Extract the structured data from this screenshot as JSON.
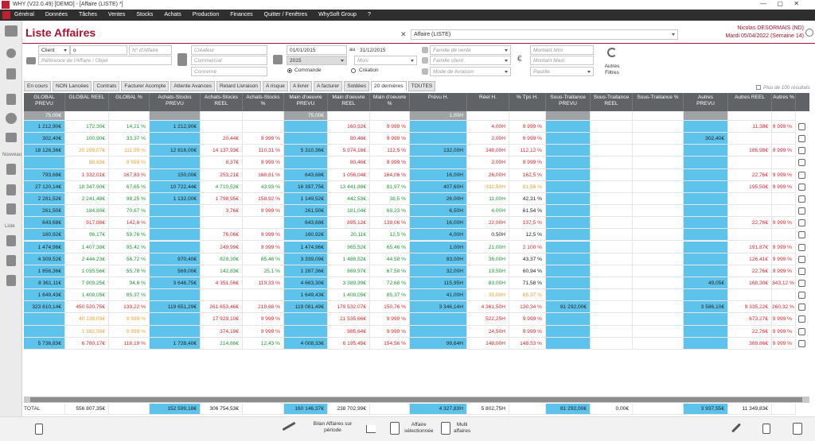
{
  "window": {
    "title": "WHY (V22.0.49)  [DEMO] - [Affaire (LISTE) *]"
  },
  "menu": [
    "Général",
    "Données",
    "Tâches",
    "Ventes",
    "Stocks",
    "Achats",
    "Production",
    "Finances",
    "Quitter / Fenêtres",
    "WhySoft Group",
    "?"
  ],
  "sidebar": {
    "new": "Nouveau",
    "list": "Liste"
  },
  "header": {
    "title": "Liste Affaires",
    "view": "Affaire (LISTE)",
    "user": "Nicolas DESORMAIS (ND)",
    "date": "Mardi 05/04/2022 (Semaine 14)"
  },
  "filters": {
    "client": "Client",
    "client_value": "o",
    "number": "N° d'Affaire",
    "reference": "Référence de l'Affaire / Objet",
    "creator": "Créateur",
    "sales": "Commercial",
    "concerned": "Concerné",
    "date_from": "01/01/2015",
    "date_to_label": "au",
    "date_to": "31/12/2015",
    "year": "2015",
    "month": "Mois",
    "radio_order": "Commande",
    "radio_creation": "Création",
    "sales_family": "Famille de vente",
    "client_family": "Famille client",
    "delivery": "Mode de livraison",
    "min": "Montant Mini",
    "max": "Montant Maxi",
    "badge": "Pastille",
    "currency": "€",
    "more": "Autres\nFiltres"
  },
  "tabs": {
    "items": [
      "En cours",
      "NON Lancées",
      "Contrats",
      "Facturer Acompte",
      "Attente Avances",
      "Retard Livraison",
      "A risque",
      "A livrer",
      "A facturer",
      "Soldées",
      "20 dernières",
      "TOUTES"
    ],
    "selected": 10,
    "more_results": "Plus de 100 résultats"
  },
  "table": {
    "highlight_color": "#5ec3ea",
    "filter_color": "#9ea3a8",
    "palette": {
      "k": "#222222",
      "g": "#1e9a3c",
      "r": "#e2262f",
      "o": "#f0a236"
    },
    "columns": [
      {
        "label": "GLOBAL\nPREVU",
        "highlight": true
      },
      {
        "label": "GLOBAL REEL"
      },
      {
        "label": "GLOBAL %"
      },
      {
        "label": "Achats-Stocks\nPREVU",
        "highlight": true
      },
      {
        "label": "Achats-Stocks\nREEL"
      },
      {
        "label": "Achats-Stocks\n%"
      },
      {
        "label": "Main d'oeuvre\nPREVU",
        "highlight": true
      },
      {
        "label": "Main d'oeuvre\nREEL"
      },
      {
        "label": "Main d'oeuvre\n%"
      },
      {
        "label": "Prévu H.",
        "highlight": true
      },
      {
        "label": "Réel H."
      },
      {
        "label": "% Tps H."
      },
      {
        "label": "Sous-Traitance\nPREVU",
        "highlight": true
      },
      {
        "label": "Sous-Traitance\nREEL"
      },
      {
        "label": "Sous-Traitance %"
      },
      {
        "label": "Autres\nPREVU",
        "highlight": true
      },
      {
        "label": "Autres REEL"
      },
      {
        "label": "Autres %"
      }
    ],
    "filter_row": [
      "75,00€",
      null,
      null,
      null,
      null,
      null,
      "75,00€",
      null,
      null,
      "1,00H",
      null,
      null,
      null,
      null,
      null,
      null,
      null,
      null
    ],
    "rows": [
      {
        "tones": "kggkkkkrrkrrkkkkrr",
        "cells": [
          "1 212,90€",
          "172,30€",
          "14,21 %",
          "1 212,90€",
          null,
          null,
          null,
          "160,92€",
          "9 999 %",
          null,
          "4,00H",
          "9 999 %",
          null,
          null,
          null,
          null,
          "11,38€",
          "9 999 %"
        ]
      },
      {
        "tones": "kggkrrkrrkrrkkkkkk",
        "cells": [
          "302,40€",
          "100,90€",
          "33,37 %",
          null,
          "20,44€",
          "9 999 %",
          null,
          "80,46€",
          "9 999 %",
          null,
          "2,00H",
          "9 999 %",
          null,
          null,
          null,
          "302,40€",
          null,
          null
        ]
      },
      {
        "tones": "kookrrkrrkrrkkkkrr",
        "cells": [
          "18 126,36€",
          "20 299,07€",
          "111,99 %",
          "12 816,00€",
          "14 137,93€",
          "110,31 %",
          "5 310,36€",
          "5 974,16€",
          "112,5 %",
          "132,00H",
          "148,00H",
          "112,12 %",
          null,
          null,
          null,
          null,
          "186,98€",
          "9 999 %"
        ]
      },
      {
        "tones": "kookrrkrrkrrkkkkkk",
        "cells": [
          null,
          "88,83€",
          "9 999 %",
          null,
          "8,37€",
          "9 999 %",
          null,
          "80,46€",
          "9 999 %",
          null,
          "2,00H",
          "9 999 %",
          null,
          null,
          null,
          null,
          null,
          null
        ]
      },
      {
        "tones": "krrkrrkrrkrrkkkkrr",
        "cells": [
          "793,68€",
          "1 332,01€",
          "167,83 %",
          "150,00€",
          "253,21€",
          "168,81 %",
          "643,68€",
          "1 056,04€",
          "164,06 %",
          "16,00H",
          "26,00H",
          "162,5 %",
          null,
          null,
          null,
          null,
          "22,76€",
          "9 999 %"
        ]
      },
      {
        "tones": "kggkggkggkookkkkrr",
        "cells": [
          "27 120,14€",
          "18 347,90€",
          "67,65 %",
          "10 722,44€",
          "4 710,52€",
          "43,93 %",
          "16 397,75€",
          "13 441,88€",
          "81,97 %",
          "407,60H",
          "332,50H",
          "81,58 %",
          null,
          null,
          null,
          null,
          "195,50€",
          "9 999 %"
        ]
      },
      {
        "tones": "kggkrrkggkgkkkkkkk",
        "cells": [
          "2 281,52€",
          "2 241,48€",
          "98,25 %",
          "1 132,00€",
          "1 798,95€",
          "158,92 %",
          "1 149,52€",
          "442,53€",
          "38,5 %",
          "26,00H",
          "11,00H",
          "42,31 %",
          null,
          null,
          null,
          null,
          null,
          null
        ]
      },
      {
        "tones": "kggkrrkggkgkkkkkkk",
        "cells": [
          "261,50€",
          "184,80€",
          "70,67 %",
          null,
          "3,76€",
          "9 999 %",
          "261,50€",
          "181,04€",
          "69,23 %",
          "6,50H",
          "4,00H",
          "61,54 %",
          null,
          null,
          null,
          null,
          null,
          null
        ]
      },
      {
        "tones": "krrkkkkrrkrrkkkkrr",
        "cells": [
          "643,68€",
          "917,88€",
          "142,6 %",
          null,
          null,
          null,
          "643,68€",
          "895,12€",
          "139,06 %",
          "16,00H",
          "22,00H",
          "137,5 %",
          null,
          null,
          null,
          null,
          "22,76€",
          "9 999 %"
        ]
      },
      {
        "tones": "kggkrrkggkkkkkkkkk",
        "cells": [
          "160,92€",
          "96,17€",
          "59,76 %",
          null,
          "76,06€",
          "9 999 %",
          "160,92€",
          "20,11€",
          "12,5 %",
          "4,00H",
          "0,50H",
          "12,5 %",
          null,
          null,
          null,
          null,
          null,
          null
        ]
      },
      {
        "tones": "kggkrrkggkgrkkkkrr",
        "cells": [
          "1 474,96€",
          "1 407,38€",
          "95,42 %",
          null,
          "249,99€",
          "9 999 %",
          "1 474,96€",
          "965,52€",
          "65,46 %",
          "1,00H",
          "21,00H",
          "2 100 %",
          null,
          null,
          null,
          null,
          "191,87€",
          "9 999 %"
        ]
      },
      {
        "tones": "kggkggkggkgkkkkkrr",
        "cells": [
          "4 309,52€",
          "2 444,23€",
          "56,72 %",
          "970,40€",
          "829,30€",
          "85,46 %",
          "3 339,09€",
          "1 488,52€",
          "44,58 %",
          "83,00H",
          "36,00H",
          "43,37 %",
          null,
          null,
          null,
          null,
          "126,41€",
          "9 999 %"
        ]
      },
      {
        "tones": "kggkggkggkgkkkkkrr",
        "cells": [
          "1 856,36€",
          "1 035,56€",
          "55,78 %",
          "569,00€",
          "142,83€",
          "25,1 %",
          "1 287,36€",
          "869,97€",
          "67,58 %",
          "32,00H",
          "19,50H",
          "60,94 %",
          null,
          null,
          null,
          null,
          "22,76€",
          "9 999 %"
        ]
      },
      {
        "tones": "kggkrrkggkgkkkkkrr",
        "cells": [
          "8 361,11€",
          "7 909,25€",
          "94,6 %",
          "3 646,75€",
          "4 351,56€",
          "119,33 %",
          "4 663,30€",
          "3 389,39€",
          "72,68 %",
          "115,95H",
          "83,00H",
          "71,58 %",
          null,
          null,
          null,
          "49,05€",
          "168,30€",
          "343,12 %"
        ]
      },
      {
        "tones": "kggkkkkggkookkkkkk",
        "cells": [
          "1 649,43€",
          "1 408,05€",
          "85,37 %",
          null,
          null,
          null,
          "1 649,43€",
          "1 408,05€",
          "85,37 %",
          "41,00H",
          "35,00H",
          "85,37 %",
          null,
          null,
          null,
          null,
          null,
          null
        ]
      },
      {
        "tones": "krrkrrkrrkrrkkkkrr",
        "cells": [
          "323 610,14€",
          "450 520,75€",
          "139,22 %",
          "119 651,29€",
          "261 653,46€",
          "218,68 %",
          "119 081,49€",
          "179 532,07€",
          "150,76 %",
          "3 346,14H",
          "4 361,50H",
          "130,34 %",
          "81 292,00€",
          null,
          null,
          "3 586,10€",
          "9 335,22€",
          "260,32 %"
        ]
      },
      {
        "tones": "kookrrkrrkrrkkkkrr",
        "cells": [
          null,
          "40 138,03€",
          "9 999 %",
          null,
          "17 929,10€",
          "9 999 %",
          null,
          "21 535,66€",
          "9 999 %",
          null,
          "522,25H",
          "9 999 %",
          null,
          null,
          null,
          null,
          "673,27€",
          "9 999 %"
        ]
      },
      {
        "tones": "kookrrkrrkrrkkkkrr",
        "cells": [
          null,
          "1 382,59€",
          "9 999 %",
          null,
          "374,19€",
          "9 999 %",
          null,
          "985,64€",
          "9 999 %",
          null,
          "24,50H",
          "9 999 %",
          null,
          null,
          null,
          null,
          "22,76€",
          "9 999 %"
        ]
      },
      {
        "tones": "krrkggkrrkrrkkkkrr",
        "cells": [
          "5 736,83€",
          "6 780,17€",
          "118,19 %",
          "1 728,40€",
          "214,86€",
          "12,43 %",
          "4 008,33€",
          "6 195,45€",
          "154,56 %",
          "99,64H",
          "148,00H",
          "148,53 %",
          null,
          null,
          null,
          null,
          "369,86€",
          "9 999 %"
        ]
      }
    ],
    "totals": {
      "label": "TOTAL",
      "cells": [
        null,
        "556 807,35€",
        null,
        "152 599,18€",
        "306 754,53€",
        null,
        "160 146,37€",
        "238 702,99€",
        null,
        "4 327,83H",
        "5 802,75H",
        null,
        "81 292,00€",
        "0,00€",
        null,
        "3 937,55€",
        "11 349,83€",
        null
      ]
    }
  },
  "footer": {
    "period": "Bilan Affaires sur\npériode",
    "selected": "Affaire\nsélectionnée",
    "multi": "Multi\naffaires"
  }
}
